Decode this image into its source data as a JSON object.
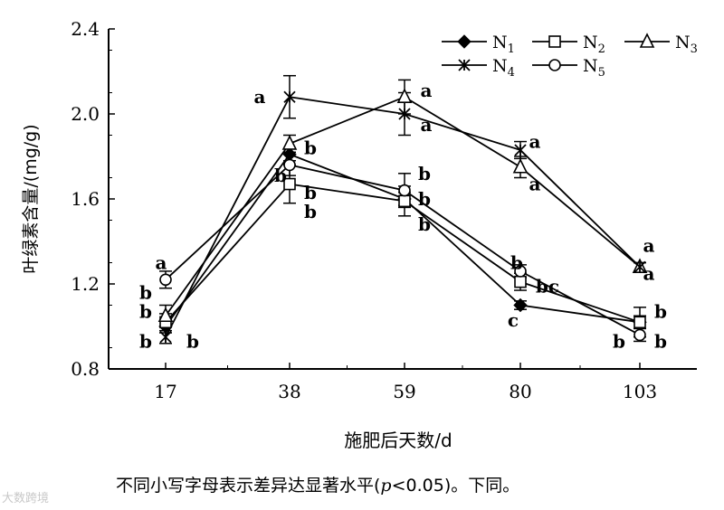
{
  "chart_data": {
    "type": "line",
    "xlabel": "施肥后天数/d",
    "ylabel": "叶绿素含量/(mg/g)",
    "x": [
      17,
      38,
      59,
      80,
      103
    ],
    "yticks": [
      "0.8",
      "1.2",
      "1.6",
      "2.0",
      "2.4"
    ],
    "ylim": [
      0.8,
      2.4
    ],
    "grid": false,
    "legend_position": "top-right",
    "series": [
      {
        "name": "N1",
        "marker": "filled-diamond",
        "values": [
          1.0,
          1.81,
          1.6,
          1.1,
          1.02
        ],
        "errors": [
          0.03,
          0.03,
          0.03,
          0.02,
          0.03
        ]
      },
      {
        "name": "N2",
        "marker": "open-square",
        "values": [
          1.02,
          1.67,
          1.59,
          1.21,
          1.02
        ],
        "errors": [
          0.04,
          0.09,
          0.07,
          0.04,
          0.07
        ]
      },
      {
        "name": "N3",
        "marker": "open-triangle",
        "values": [
          1.05,
          1.86,
          2.08,
          1.75,
          1.28
        ],
        "errors": [
          0.05,
          0.04,
          0.08,
          0.05,
          0.02
        ]
      },
      {
        "name": "N4",
        "marker": "asterisk",
        "values": [
          0.95,
          2.08,
          2.0,
          1.83,
          1.28
        ],
        "errors": [
          0.03,
          0.1,
          0.1,
          0.04,
          0.02
        ]
      },
      {
        "name": "N5",
        "marker": "open-circle",
        "values": [
          1.22,
          1.76,
          1.64,
          1.26,
          0.96
        ],
        "errors": [
          0.04,
          0.05,
          0.08,
          0.03,
          0.03
        ]
      }
    ],
    "annotations": [
      {
        "text": "a",
        "x": 17,
        "y": 1.3,
        "dx": -5,
        "dy": 0
      },
      {
        "text": "b",
        "x": 17,
        "y": 1.16,
        "dx": -22,
        "dy": 0
      },
      {
        "text": "b",
        "x": 17,
        "y": 1.07,
        "dx": -22,
        "dy": 0
      },
      {
        "text": "b",
        "x": 17,
        "y": 0.93,
        "dx": -22,
        "dy": 0
      },
      {
        "text": "b",
        "x": 17,
        "y": 0.93,
        "dx": 30,
        "dy": 0
      },
      {
        "text": "a",
        "x": 38,
        "y": 2.08,
        "dx": -33,
        "dy": 0
      },
      {
        "text": "b",
        "x": 38,
        "y": 1.84,
        "dx": 23,
        "dy": 0
      },
      {
        "text": "b",
        "x": 38,
        "y": 1.71,
        "dx": -10,
        "dy": 0
      },
      {
        "text": "b",
        "x": 38,
        "y": 1.63,
        "dx": 23,
        "dy": 0
      },
      {
        "text": "b",
        "x": 38,
        "y": 1.54,
        "dx": 23,
        "dy": 0
      },
      {
        "text": "a",
        "x": 59,
        "y": 2.11,
        "dx": 24,
        "dy": 0
      },
      {
        "text": "a",
        "x": 59,
        "y": 1.95,
        "dx": 24,
        "dy": 0
      },
      {
        "text": "b",
        "x": 59,
        "y": 1.72,
        "dx": 22,
        "dy": 0
      },
      {
        "text": "b",
        "x": 59,
        "y": 1.6,
        "dx": 22,
        "dy": 0
      },
      {
        "text": "b",
        "x": 59,
        "y": 1.48,
        "dx": 22,
        "dy": 0
      },
      {
        "text": "a",
        "x": 80,
        "y": 1.87,
        "dx": 16,
        "dy": 0
      },
      {
        "text": "a",
        "x": 80,
        "y": 1.67,
        "dx": 16,
        "dy": 0
      },
      {
        "text": "b",
        "x": 80,
        "y": 1.3,
        "dx": -4,
        "dy": 0
      },
      {
        "text": "bc",
        "x": 80,
        "y": 1.19,
        "dx": 30,
        "dy": 0
      },
      {
        "text": "c",
        "x": 80,
        "y": 1.03,
        "dx": -8,
        "dy": 0
      },
      {
        "text": "a",
        "x": 103,
        "y": 1.38,
        "dx": 10,
        "dy": 0
      },
      {
        "text": "a",
        "x": 103,
        "y": 1.25,
        "dx": 10,
        "dy": 0
      },
      {
        "text": "b",
        "x": 103,
        "y": 1.07,
        "dx": 23,
        "dy": 0
      },
      {
        "text": "b",
        "x": 103,
        "y": 0.93,
        "dx": -23,
        "dy": 0
      },
      {
        "text": "b",
        "x": 103,
        "y": 0.93,
        "dx": 23,
        "dy": 0
      }
    ]
  },
  "caption": {
    "before": "不同小写字母表示差异达显著水平(",
    "italic": "p",
    "after": "<0.05)。下同。"
  },
  "watermark": "大数跨境"
}
